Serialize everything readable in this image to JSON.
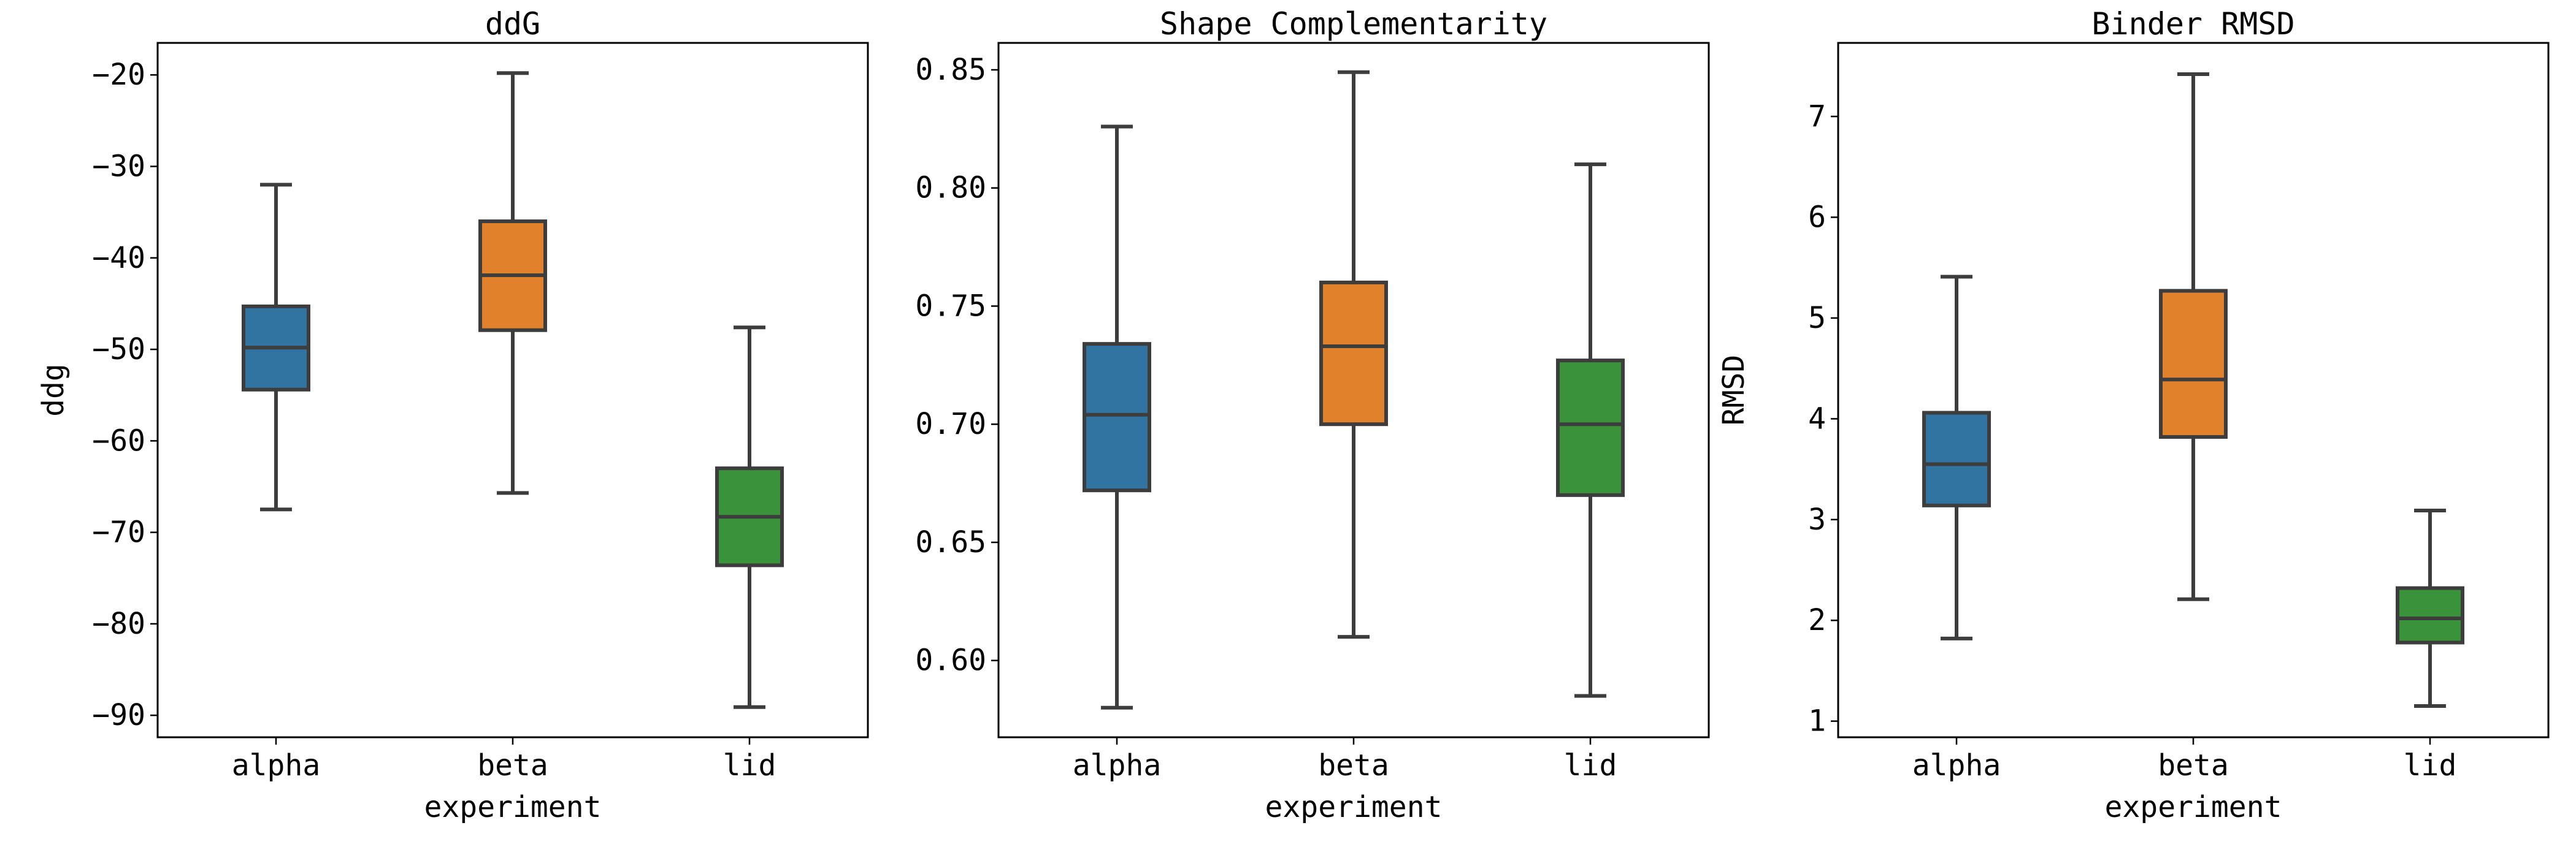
{
  "colors": {
    "alpha": "#3274a1",
    "beta": "#e1812c",
    "lid": "#3a923a",
    "line": "#3d3d3d"
  },
  "chart_data": [
    {
      "type": "box",
      "title": "ddG",
      "xlabel": "experiment",
      "ylabel": "ddg",
      "categories": [
        "alpha",
        "beta",
        "lid"
      ],
      "ylim": [
        -92.4,
        -16.5
      ],
      "yticks": [
        -20,
        -30,
        -40,
        -50,
        -60,
        -70,
        -80,
        -90
      ],
      "ytick_labels": [
        "−20",
        "−30",
        "−40",
        "−50",
        "−60",
        "−70",
        "−80",
        "−90"
      ],
      "boxes": [
        {
          "name": "alpha",
          "whislo": -67.5,
          "q1": -54.4,
          "med": -49.8,
          "q3": -45.3,
          "whishi": -32.0
        },
        {
          "name": "beta",
          "whislo": -65.7,
          "q1": -47.9,
          "med": -41.9,
          "q3": -36.0,
          "whishi": -19.8
        },
        {
          "name": "lid",
          "whislo": -89.1,
          "q1": -73.6,
          "med": -68.3,
          "q3": -63.0,
          "whishi": -47.6
        }
      ]
    },
    {
      "type": "box",
      "title": "Shape Complementarity",
      "xlabel": "experiment",
      "ylabel": "",
      "categories": [
        "alpha",
        "beta",
        "lid"
      ],
      "ylim": [
        0.5675,
        0.8614
      ],
      "yticks": [
        0.85,
        0.8,
        0.75,
        0.7,
        0.65,
        0.6
      ],
      "ytick_labels": [
        "0.85",
        "0.80",
        "0.75",
        "0.70",
        "0.65",
        "0.60"
      ],
      "boxes": [
        {
          "name": "alpha",
          "whislo": 0.58,
          "q1": 0.672,
          "med": 0.704,
          "q3": 0.734,
          "whishi": 0.826
        },
        {
          "name": "beta",
          "whislo": 0.61,
          "q1": 0.7,
          "med": 0.733,
          "q3": 0.76,
          "whishi": 0.849
        },
        {
          "name": "lid",
          "whislo": 0.585,
          "q1": 0.67,
          "med": 0.7,
          "q3": 0.727,
          "whishi": 0.81
        }
      ]
    },
    {
      "type": "box",
      "title": "Binder RMSD",
      "xlabel": "experiment",
      "ylabel": "RMSD",
      "categories": [
        "alpha",
        "beta",
        "lid"
      ],
      "ylim": [
        0.84,
        7.73
      ],
      "yticks": [
        7,
        6,
        5,
        4,
        3,
        2,
        1
      ],
      "ytick_labels": [
        "7",
        "6",
        "5",
        "4",
        "3",
        "2",
        "1"
      ],
      "boxes": [
        {
          "name": "alpha",
          "whislo": 1.82,
          "q1": 3.14,
          "med": 3.55,
          "q3": 4.06,
          "whishi": 5.41
        },
        {
          "name": "beta",
          "whislo": 2.21,
          "q1": 3.82,
          "med": 4.39,
          "q3": 5.27,
          "whishi": 7.42
        },
        {
          "name": "lid",
          "whislo": 1.15,
          "q1": 1.78,
          "med": 2.02,
          "q3": 2.32,
          "whishi": 3.09
        }
      ]
    }
  ]
}
